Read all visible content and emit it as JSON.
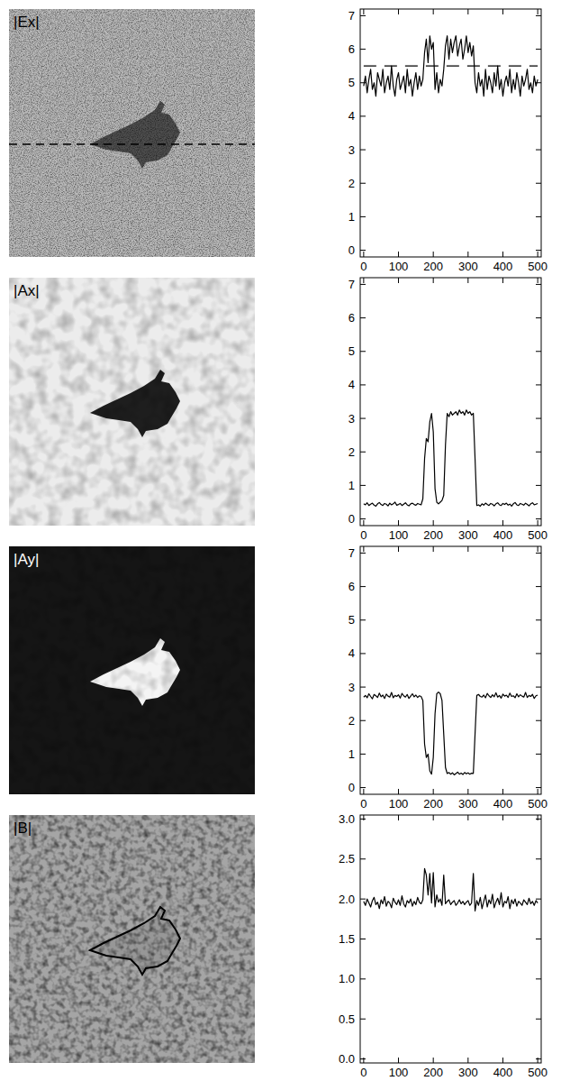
{
  "chart_data": [
    {
      "type": "line",
      "title": "|Ex|",
      "x": [
        0,
        5,
        10,
        15,
        20,
        25,
        30,
        35,
        40,
        45,
        50,
        55,
        60,
        65,
        70,
        75,
        80,
        85,
        90,
        95,
        100,
        105,
        110,
        115,
        120,
        125,
        130,
        135,
        140,
        145,
        150,
        155,
        160,
        165,
        170,
        175,
        180,
        185,
        190,
        195,
        200,
        205,
        210,
        215,
        220,
        225,
        230,
        235,
        240,
        245,
        250,
        255,
        260,
        265,
        270,
        275,
        280,
        285,
        290,
        295,
        300,
        305,
        310,
        315,
        320,
        325,
        330,
        335,
        340,
        345,
        350,
        355,
        360,
        365,
        370,
        375,
        380,
        385,
        390,
        395,
        400,
        405,
        410,
        415,
        420,
        425,
        430,
        435,
        440,
        445,
        450,
        455,
        460,
        465,
        470,
        475,
        480,
        485,
        490,
        495,
        500
      ],
      "series": [
        {
          "color": "#000000",
          "line_style": "solid",
          "values": [
            4.9,
            5.2,
            4.7,
            5.1,
            5.4,
            4.8,
            5.0,
            4.6,
            5.3,
            5.1,
            4.9,
            5.4,
            4.7,
            5.0,
            5.2,
            4.8,
            5.5,
            4.9,
            4.6,
            5.1,
            5.3,
            4.8,
            5.0,
            5.2,
            4.7,
            5.4,
            4.9,
            5.1,
            4.6,
            5.0,
            5.3,
            4.8,
            5.2,
            4.9,
            5.1,
            5.9,
            6.3,
            5.6,
            6.4,
            6.0,
            6.2,
            4.8,
            5.3,
            4.7,
            5.1,
            4.9,
            5.4,
            6.1,
            6.4,
            5.7,
            6.3,
            5.9,
            6.2,
            6.4,
            5.8,
            6.1,
            6.3,
            5.7,
            6.0,
            6.4,
            5.9,
            6.2,
            5.8,
            6.1,
            5.0,
            4.7,
            5.3,
            4.9,
            5.1,
            4.6,
            5.4,
            4.8,
            5.2,
            5.0,
            4.7,
            5.3,
            4.9,
            5.5,
            4.8,
            5.1,
            4.6,
            5.0,
            5.2,
            4.9,
            5.4,
            4.7,
            5.1,
            4.8,
            5.3,
            5.0,
            4.6,
            5.2,
            4.9,
            5.1,
            5.4,
            4.8,
            5.0,
            4.7,
            5.2,
            4.9,
            5.1
          ]
        },
        {
          "color": "#000000",
          "line_style": "dashed",
          "x": [
            0,
            500
          ],
          "values": [
            5.5,
            5.5
          ]
        }
      ],
      "xlim": [
        -10,
        510
      ],
      "xticks": [
        0,
        100,
        200,
        300,
        400,
        500
      ],
      "ylim": [
        -0.2,
        7.2
      ],
      "yticks": [
        0,
        1,
        2,
        3,
        4,
        5,
        6,
        7
      ]
    },
    {
      "type": "line",
      "title": "|Ax|",
      "x": [
        0,
        5,
        10,
        15,
        20,
        25,
        30,
        35,
        40,
        45,
        50,
        55,
        60,
        65,
        70,
        75,
        80,
        85,
        90,
        95,
        100,
        105,
        110,
        115,
        120,
        125,
        130,
        135,
        140,
        145,
        150,
        155,
        160,
        165,
        170,
        175,
        180,
        185,
        190,
        195,
        200,
        205,
        210,
        215,
        220,
        225,
        230,
        235,
        240,
        245,
        250,
        255,
        260,
        265,
        270,
        275,
        280,
        285,
        290,
        295,
        300,
        305,
        310,
        315,
        320,
        325,
        330,
        335,
        340,
        345,
        350,
        355,
        360,
        365,
        370,
        375,
        380,
        385,
        390,
        395,
        400,
        405,
        410,
        415,
        420,
        425,
        430,
        435,
        440,
        445,
        450,
        455,
        460,
        465,
        470,
        475,
        480,
        485,
        490,
        495,
        500
      ],
      "series": [
        {
          "color": "#000000",
          "line_style": "solid",
          "values": [
            0.45,
            0.42,
            0.48,
            0.4,
            0.44,
            0.47,
            0.41,
            0.38,
            0.45,
            0.49,
            0.43,
            0.4,
            0.46,
            0.44,
            0.39,
            0.47,
            0.42,
            0.45,
            0.5,
            0.41,
            0.43,
            0.46,
            0.4,
            0.44,
            0.48,
            0.42,
            0.39,
            0.45,
            0.47,
            0.43,
            0.41,
            0.46,
            0.44,
            0.42,
            0.6,
            1.8,
            2.4,
            2.3,
            2.9,
            3.15,
            2.6,
            0.9,
            0.5,
            0.45,
            0.5,
            0.55,
            0.7,
            2.2,
            3.15,
            3.05,
            3.2,
            3.1,
            3.15,
            3.2,
            3.1,
            3.25,
            3.15,
            3.2,
            3.1,
            3.25,
            3.15,
            3.2,
            3.1,
            3.15,
            1.8,
            0.4,
            0.42,
            0.38,
            0.45,
            0.41,
            0.47,
            0.43,
            0.4,
            0.46,
            0.44,
            0.39,
            0.45,
            0.48,
            0.42,
            0.4,
            0.46,
            0.43,
            0.47,
            0.41,
            0.44,
            0.38,
            0.45,
            0.49,
            0.42,
            0.4,
            0.46,
            0.44,
            0.41,
            0.47,
            0.43,
            0.39,
            0.45,
            0.48,
            0.42,
            0.44,
            0.46
          ]
        }
      ],
      "xlim": [
        -10,
        510
      ],
      "xticks": [
        0,
        100,
        200,
        300,
        400,
        500
      ],
      "ylim": [
        -0.2,
        7.2
      ],
      "yticks": [
        0,
        1,
        2,
        3,
        4,
        5,
        6,
        7
      ]
    },
    {
      "type": "line",
      "title": "|Ay|",
      "x": [
        0,
        5,
        10,
        15,
        20,
        25,
        30,
        35,
        40,
        45,
        50,
        55,
        60,
        65,
        70,
        75,
        80,
        85,
        90,
        95,
        100,
        105,
        110,
        115,
        120,
        125,
        130,
        135,
        140,
        145,
        150,
        155,
        160,
        165,
        170,
        175,
        180,
        185,
        190,
        195,
        200,
        205,
        210,
        215,
        220,
        225,
        230,
        235,
        240,
        245,
        250,
        255,
        260,
        265,
        270,
        275,
        280,
        285,
        290,
        295,
        300,
        305,
        310,
        315,
        320,
        325,
        330,
        335,
        340,
        345,
        350,
        355,
        360,
        365,
        370,
        375,
        380,
        385,
        390,
        395,
        400,
        405,
        410,
        415,
        420,
        425,
        430,
        435,
        440,
        445,
        450,
        455,
        460,
        465,
        470,
        475,
        480,
        485,
        490,
        495,
        500
      ],
      "series": [
        {
          "color": "#000000",
          "line_style": "solid",
          "values": [
            2.7,
            2.75,
            2.68,
            2.8,
            2.72,
            2.65,
            2.78,
            2.74,
            2.69,
            2.82,
            2.71,
            2.76,
            2.66,
            2.79,
            2.73,
            2.7,
            2.84,
            2.68,
            2.75,
            2.72,
            2.77,
            2.67,
            2.81,
            2.74,
            2.7,
            2.78,
            2.66,
            2.73,
            2.8,
            2.71,
            2.76,
            2.69,
            2.74,
            2.72,
            2.6,
            1.3,
            0.9,
            1.0,
            0.5,
            0.4,
            0.9,
            2.2,
            2.8,
            2.85,
            2.8,
            2.6,
            1.6,
            0.6,
            0.42,
            0.45,
            0.4,
            0.44,
            0.38,
            0.42,
            0.46,
            0.4,
            0.43,
            0.39,
            0.45,
            0.41,
            0.44,
            0.4,
            0.43,
            0.42,
            1.6,
            2.75,
            2.78,
            2.72,
            2.7,
            2.76,
            2.68,
            2.81,
            2.74,
            2.69,
            2.77,
            2.71,
            2.83,
            2.7,
            2.75,
            2.67,
            2.79,
            2.73,
            2.76,
            2.69,
            2.82,
            2.72,
            2.74,
            2.68,
            2.8,
            2.71,
            2.77,
            2.73,
            2.7,
            2.84,
            2.69,
            2.75,
            2.72,
            2.78,
            2.66,
            2.74,
            2.76
          ]
        }
      ],
      "xlim": [
        -10,
        510
      ],
      "xticks": [
        0,
        100,
        200,
        300,
        400,
        500
      ],
      "ylim": [
        -0.2,
        7.2
      ],
      "yticks": [
        0,
        1,
        2,
        3,
        4,
        5,
        6,
        7
      ]
    },
    {
      "type": "line",
      "title": "|B|",
      "x": [
        0,
        5,
        10,
        15,
        20,
        25,
        30,
        35,
        40,
        45,
        50,
        55,
        60,
        65,
        70,
        75,
        80,
        85,
        90,
        95,
        100,
        105,
        110,
        115,
        120,
        125,
        130,
        135,
        140,
        145,
        150,
        155,
        160,
        165,
        170,
        175,
        180,
        185,
        190,
        195,
        200,
        205,
        210,
        215,
        220,
        225,
        230,
        235,
        240,
        245,
        250,
        255,
        260,
        265,
        270,
        275,
        280,
        285,
        290,
        295,
        300,
        305,
        310,
        315,
        320,
        325,
        330,
        335,
        340,
        345,
        350,
        355,
        360,
        365,
        370,
        375,
        380,
        385,
        390,
        395,
        400,
        405,
        410,
        415,
        420,
        425,
        430,
        435,
        440,
        445,
        450,
        455,
        460,
        465,
        470,
        475,
        480,
        485,
        490,
        495,
        500
      ],
      "series": [
        {
          "color": "#000000",
          "line_style": "solid",
          "values": [
            1.97,
            1.92,
            2.0,
            1.95,
            1.9,
            1.98,
            2.02,
            1.93,
            1.96,
            1.88,
            1.99,
            1.94,
            2.03,
            1.91,
            1.97,
            1.95,
            1.89,
            2.01,
            1.96,
            1.93,
            1.99,
            1.92,
            2.04,
            1.94,
            1.9,
            1.98,
            1.95,
            2.0,
            1.91,
            1.97,
            1.93,
            2.02,
            1.96,
            1.94,
            1.99,
            2.38,
            2.3,
            2.05,
            2.32,
            1.95,
            2.33,
            1.9,
            2.05,
            1.96,
            2.0,
            1.92,
            2.3,
            1.94,
            1.97,
            1.99,
            1.93,
            1.96,
            1.98,
            1.92,
            1.95,
            1.99,
            1.94,
            1.97,
            1.93,
            1.96,
            1.98,
            1.92,
            1.95,
            2.32,
            1.85,
            1.98,
            1.92,
            2.02,
            1.88,
            1.97,
            2.05,
            1.9,
            1.99,
            1.94,
            2.06,
            1.89,
            1.96,
            2.01,
            1.93,
            2.08,
            1.9,
            1.97,
            1.95,
            2.03,
            1.88,
            1.99,
            1.94,
            2.0,
            1.91,
            1.97,
            1.95,
            1.92,
            1.99,
            1.96,
            1.93,
            2.01,
            1.94,
            1.97,
            1.92,
            1.98,
            1.95
          ]
        }
      ],
      "xlim": [
        -10,
        510
      ],
      "xticks": [
        0,
        100,
        200,
        300,
        400,
        500
      ],
      "ylim": [
        -0.05,
        3.05
      ],
      "yticks": [
        {
          "value": 0,
          "label": "0.0"
        },
        0.5,
        {
          "value": 1,
          "label": "1.0"
        },
        1.5,
        {
          "value": 2,
          "label": "2.0"
        },
        2.5,
        {
          "value": 3,
          "label": "3.0"
        }
      ]
    }
  ]
}
